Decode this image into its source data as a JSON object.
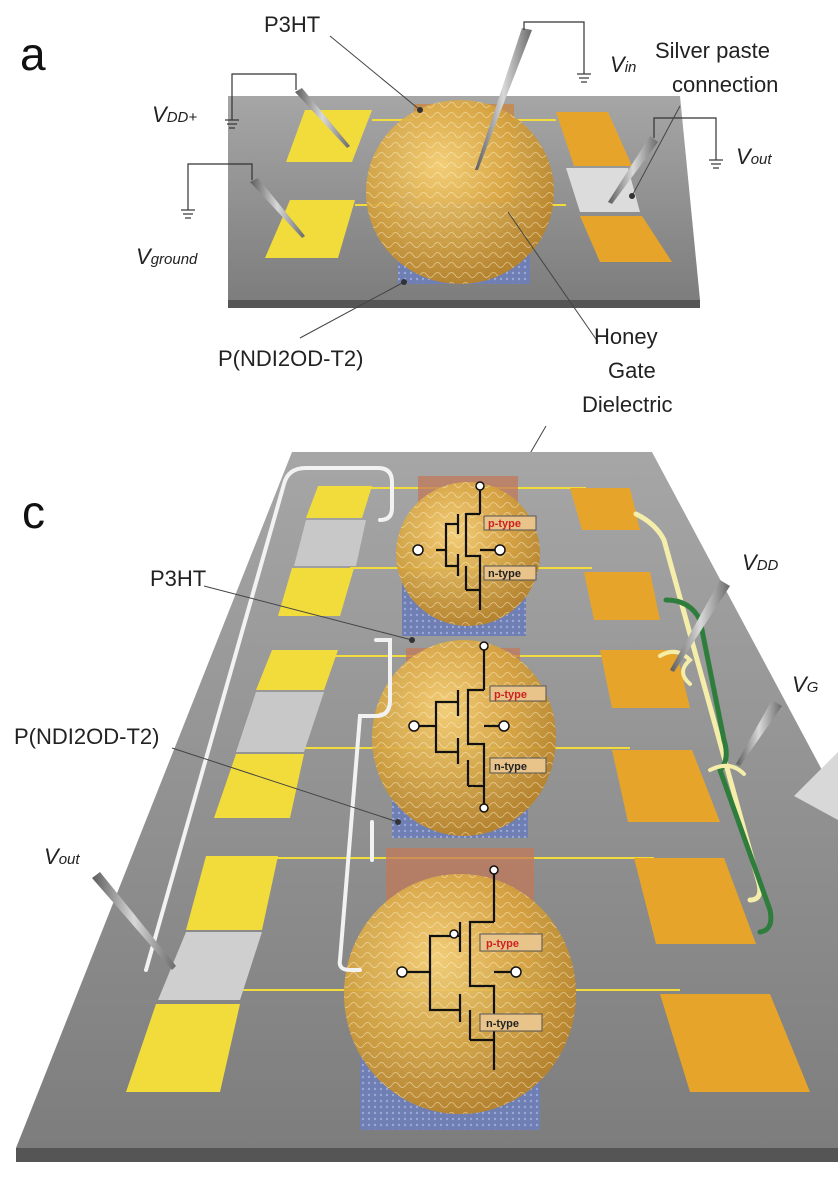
{
  "panel_a": {
    "letter": "a",
    "labels": {
      "p3ht": "P3HT",
      "vin_main": "V",
      "vin_sub": "in",
      "silver_line1": "Silver paste",
      "silver_line2": "connection",
      "vdd_main": "V",
      "vdd_sub": "DD+",
      "vout_main": "V",
      "vout_sub": "out",
      "vground_main": "V",
      "vground_sub": "ground",
      "pndi": "P(NDI2OD-T2)",
      "honey_line1": "Honey",
      "honey_line2": "Gate",
      "honey_line3": "Dielectric"
    }
  },
  "panel_c": {
    "letter": "c",
    "labels": {
      "p3ht": "P3HT",
      "pndi": "P(NDI2OD-T2)",
      "vout_main": "V",
      "vout_sub": "out",
      "vdd_main": "V",
      "vdd_sub": "DD",
      "vg_main": "V",
      "vg_sub": "G"
    },
    "transistors": [
      {
        "p_type": "p-type",
        "n_type": "n-type"
      },
      {
        "p_type": "p-type",
        "n_type": "n-type"
      },
      {
        "p_type": "p-type",
        "n_type": "n-type"
      }
    ]
  },
  "colors": {
    "substrate": "#8e8e8e",
    "gold_pad": "#e6a52a",
    "yellow_pad": "#f2dc3c",
    "dome": "#d9a640",
    "wire_green": "#2f7d3c",
    "wire_yellow": "#f5eeaa",
    "p_type_text": "#cc2222"
  }
}
